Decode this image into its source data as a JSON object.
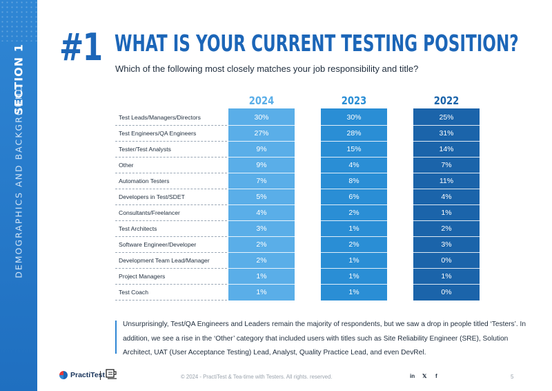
{
  "sidebar": {
    "section": "SECTION 1",
    "category": "DEMOGRAPHICS AND BACKGROUND"
  },
  "header": {
    "number": "#1",
    "title": "WHAT IS YOUR CURRENT TESTING POSITION?",
    "subtitle": "Which of the following most closely matches your job responsibility and title?"
  },
  "colors": {
    "accent": "#1c66b8",
    "col_2024": "#5aaee8",
    "col_2023": "#2a8ed5",
    "col_2022": "#1b64aa"
  },
  "chart_data": {
    "type": "table",
    "columns": [
      "2024",
      "2023",
      "2022"
    ],
    "rows": [
      {
        "label": "Test Leads/Managers/Directors",
        "values": [
          "30%",
          "30%",
          "25%"
        ]
      },
      {
        "label": "Test Engineers/QA Engineers",
        "values": [
          "27%",
          "28%",
          "31%"
        ]
      },
      {
        "label": "Tester/Test Analysts",
        "values": [
          "9%",
          "15%",
          "14%"
        ]
      },
      {
        "label": "Other",
        "values": [
          "9%",
          "4%",
          "7%"
        ]
      },
      {
        "label": "Automation Testers",
        "values": [
          "7%",
          "8%",
          "11%"
        ]
      },
      {
        "label": "Developers in Test/SDET",
        "values": [
          "5%",
          "6%",
          "4%"
        ]
      },
      {
        "label": "Consultants/Freelancer",
        "values": [
          "4%",
          "2%",
          "1%"
        ]
      },
      {
        "label": "Test Architects",
        "values": [
          "3%",
          "1%",
          "2%"
        ]
      },
      {
        "label": "Software Engineer/Developer",
        "values": [
          "2%",
          "2%",
          "3%"
        ]
      },
      {
        "label": "Development Team Lead/Manager",
        "values": [
          "2%",
          "1%",
          "0%"
        ]
      },
      {
        "label": "Project Managers",
        "values": [
          "1%",
          "1%",
          "1%"
        ]
      },
      {
        "label": "Test Coach",
        "values": [
          "1%",
          "1%",
          "0%"
        ]
      }
    ]
  },
  "commentary": "Unsurprisingly, Test/QA Engineers and Leaders remain the majority of respondents, but we saw a drop in people titled ‘Testers’. In addition, we see a rise in the ‘Other’ category that included users with titles such as Site Reliability Engineer (SRE), Solution Architect, UAT (User Acceptance Testing) Lead, Analyst, Quality Practice Lead, and even DevRel.",
  "footer": {
    "logo_text": "PractiTest",
    "logo_divider": "|",
    "copyright": "© 2024 - PractiTest & Tea-time with Testers. All rights. reserved.",
    "social": [
      "in",
      "𝕏",
      "f"
    ],
    "page": "5"
  }
}
